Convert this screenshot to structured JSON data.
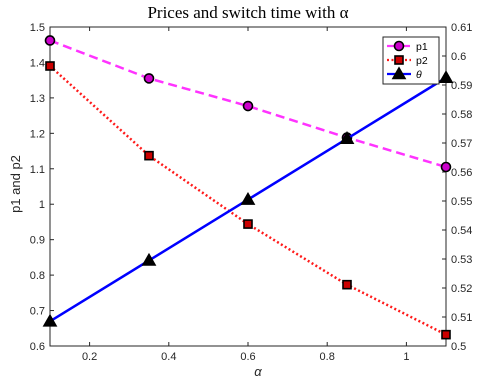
{
  "chart_data": {
    "type": "line",
    "title": "Prices and switch time with α",
    "xlabel": "α",
    "ylabel_left": "p1 and p2",
    "xlim": [
      0.1,
      1.1
    ],
    "ylim_left": [
      0.6,
      1.5
    ],
    "ylim_right": [
      0.5,
      0.61
    ],
    "x_ticks": [
      "0.2",
      "0.4",
      "0.6",
      "0.8",
      "1"
    ],
    "y_left_ticks": [
      "0.6",
      "0.7",
      "0.8",
      "0.9",
      "1",
      "1.1",
      "1.2",
      "1.3",
      "1.4",
      "1.5"
    ],
    "y_right_ticks": [
      "0.5",
      "0.51",
      "0.52",
      "0.53",
      "0.54",
      "0.55",
      "0.56",
      "0.57",
      "0.58",
      "0.59",
      "0.6",
      "0.61"
    ],
    "grid": false,
    "legend_position": "top-right",
    "x": [
      0.1,
      0.35,
      0.6,
      0.85,
      1.1
    ],
    "series": [
      {
        "name": "p1",
        "axis": "left",
        "values": [
          1.462,
          1.355,
          1.277,
          1.188,
          1.105
        ],
        "color": "#ff33ff",
        "line": "dashed",
        "marker": "circle",
        "marker_fill": "#cc00cc",
        "marker_edge": "#000000"
      },
      {
        "name": "p2",
        "axis": "left",
        "values": [
          1.39,
          1.137,
          0.944,
          0.773,
          0.632
        ],
        "color": "#ff1a1a",
        "line": "dotted",
        "marker": "square",
        "marker_fill": "#cc0000",
        "marker_edge": "#000000"
      },
      {
        "name": "θ",
        "axis": "right",
        "values": [
          0.5085,
          0.5295,
          0.5505,
          0.5715,
          0.5925
        ],
        "color": "#0000ff",
        "line": "solid",
        "marker": "triangle",
        "marker_fill": "#000000",
        "marker_edge": "#000000"
      }
    ]
  }
}
